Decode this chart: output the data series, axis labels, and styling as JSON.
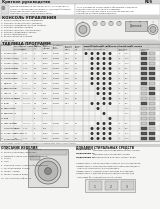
{
  "page_color": "#f5f5f3",
  "white": "#ffffff",
  "header_bg": "#d8d8d6",
  "section_bg": "#d0d0ce",
  "table_header_bg": "#e0e0de",
  "table_alt_row": "#ebebea",
  "table_white_row": "#f8f8f7",
  "border_color": "#aaaaaa",
  "text_dark": "#1a1a1a",
  "text_mid": "#444444",
  "text_light": "#666666",
  "dot_color": "#333333",
  "square_fill": "#555555",
  "diagram_bg": "#e8e8e6",
  "diagram_border": "#888888"
}
